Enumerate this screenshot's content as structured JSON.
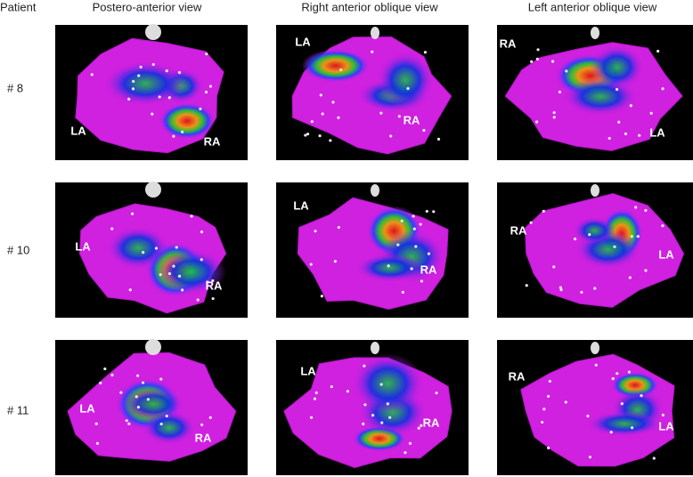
{
  "header": {
    "corner": "Patient",
    "columns": [
      "Postero-anterior view",
      "Right anterior oblique view",
      "Left anterior oblique view"
    ]
  },
  "rows": [
    {
      "label": "# 8",
      "panels": [
        {
          "labels": [
            "LA",
            "RA"
          ]
        },
        {
          "labels": [
            "LA",
            "RA"
          ]
        },
        {
          "labels": [
            "RA",
            "LA"
          ]
        }
      ]
    },
    {
      "label": "# 10",
      "panels": [
        {
          "labels": [
            "LA",
            "RA"
          ]
        },
        {
          "labels": [
            "LA",
            "RA"
          ]
        },
        {
          "labels": [
            "RA",
            "LA"
          ]
        }
      ]
    },
    {
      "label": "# 11",
      "panels": [
        {
          "labels": [
            "LA",
            "RA"
          ]
        },
        {
          "labels": [
            "LA",
            "RA"
          ]
        },
        {
          "labels": [
            "RA",
            "LA"
          ]
        }
      ]
    }
  ]
}
